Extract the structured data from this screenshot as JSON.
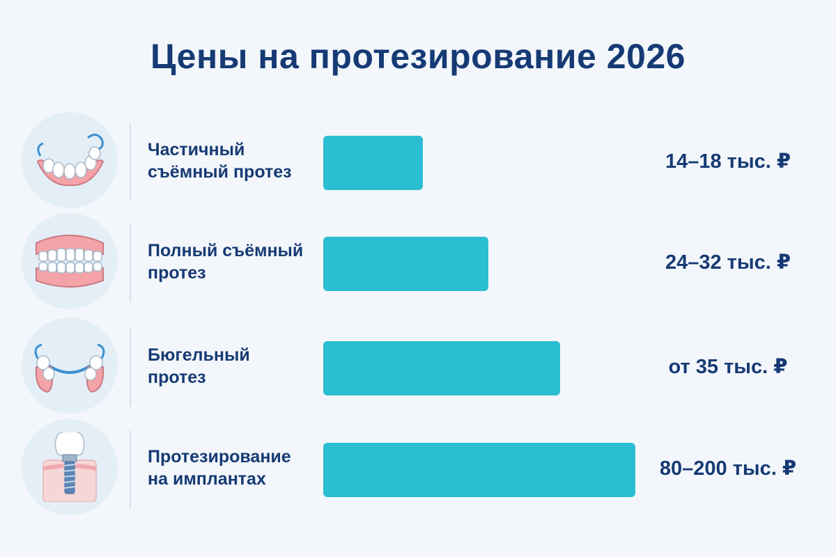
{
  "title": "Цены на протезирование 2026",
  "chart_data": {
    "type": "bar",
    "orientation": "horizontal",
    "categories": [
      "Частичный съёмный протез",
      "Полный съёмный протез",
      "Бюгельный протез",
      "Протезирование на имплантах"
    ],
    "series": [
      {
        "values": [
          16,
          28,
          35,
          140
        ],
        "value_labels": [
          "14–18 тыс. ₽",
          "24–32 тыс. ₽",
          "от 35 тыс. ₽",
          "80–200 тыс. ₽"
        ],
        "unit": "тыс. ₽"
      }
    ],
    "bar_lengths_relative": [
      0.32,
      0.53,
      0.76,
      1.0
    ],
    "bar_color": "#2bbdd1",
    "grid": false,
    "legend": "none"
  },
  "rows": [
    {
      "icon": "partial-denture-icon",
      "label_lines": [
        "Частичный",
        "съёмный протез"
      ],
      "price": "14–18 тыс. ₽"
    },
    {
      "icon": "full-denture-icon",
      "label_lines": [
        "Полный съёмный",
        "протез"
      ],
      "price": "24–32 тыс. ₽"
    },
    {
      "icon": "clasp-denture-icon",
      "label_lines": [
        "Бюгельный",
        "протез"
      ],
      "price": "от 35 тыс. ₽"
    },
    {
      "icon": "dental-implant-icon",
      "label_lines": [
        "Протезирование",
        "на имплантах"
      ],
      "price": "80–200 тыс. ₽"
    }
  ],
  "colors": {
    "background": "#f3f7fb",
    "text": "#163a74",
    "bar": "#2bbdd1",
    "icon_circle": "#e4eef6"
  }
}
